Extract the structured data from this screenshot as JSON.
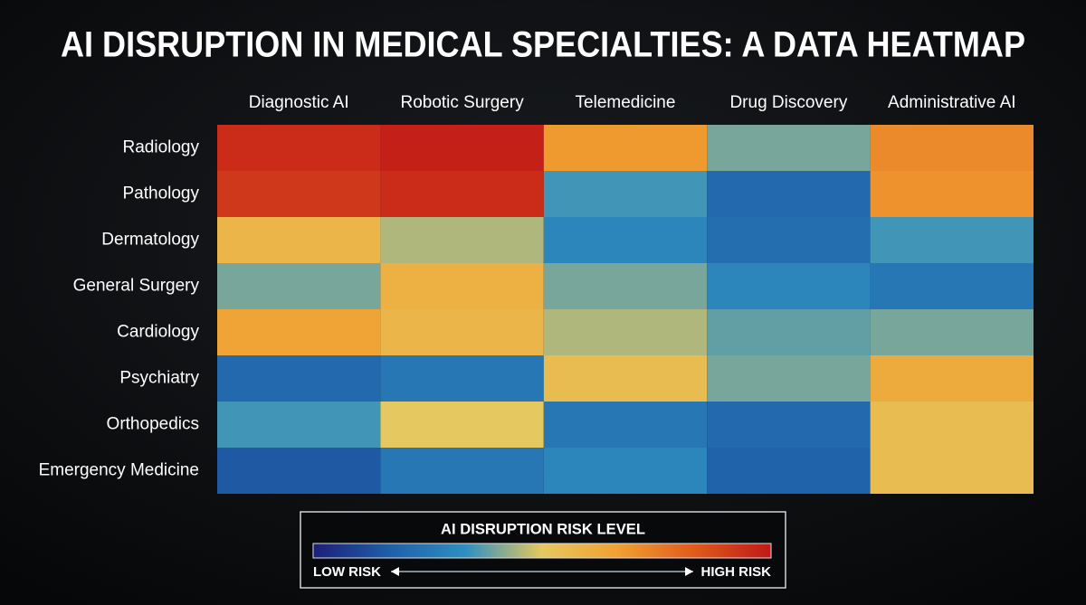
{
  "chart_data": {
    "type": "heatmap",
    "title": "AI DISRUPTION IN MEDICAL SPECIALTIES: A DATA HEATMAP",
    "x": [
      "Diagnostic AI",
      "Robotic Surgery",
      "Telemedicine",
      "Drug Discovery",
      "Administrative AI"
    ],
    "y": [
      "Radiology",
      "Pathology",
      "Dermatology",
      "General Surgery",
      "Cardiology",
      "Psychiatry",
      "Orthopedics",
      "Emergency Medicine"
    ],
    "values": [
      [
        95,
        98,
        68,
        40,
        72
      ],
      [
        92,
        95,
        35,
        20,
        70
      ],
      [
        58,
        45,
        30,
        22,
        35
      ],
      [
        40,
        60,
        40,
        30,
        25
      ],
      [
        65,
        58,
        45,
        38,
        40
      ],
      [
        20,
        25,
        55,
        40,
        62
      ],
      [
        35,
        50,
        25,
        20,
        55
      ],
      [
        15,
        25,
        30,
        18,
        55
      ]
    ],
    "zlim": [
      0,
      100
    ],
    "colorscale": [
      "#1c1f78",
      "#1f5fa8",
      "#2f8fc0",
      "#e6c860",
      "#f0a030",
      "#e05a1c",
      "#c01818"
    ],
    "legend_title": "AI DISRUPTION RISK LEVEL",
    "legend_low": "LOW RISK",
    "legend_high": "HIGH RISK"
  }
}
